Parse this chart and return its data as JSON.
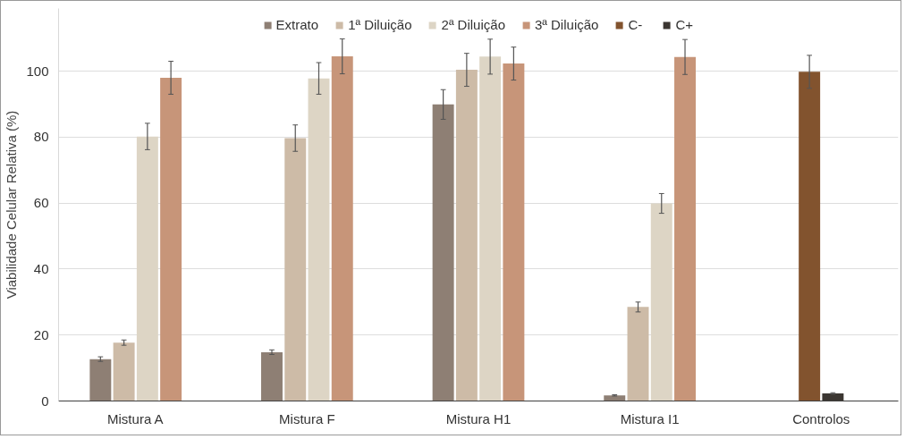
{
  "chart_data": {
    "type": "bar",
    "ylabel": "Viabilidade Celular Relativa (%)",
    "categories": [
      "Mistura A",
      "Mistura F",
      "Mistura H1",
      "Mistura I1",
      "Controlos"
    ],
    "series": [
      {
        "name": "Extrato",
        "color": "#8e7f74",
        "values": [
          12.7,
          14.8,
          89.9,
          1.7,
          null
        ],
        "errors": [
          0.7,
          0.7,
          4.5,
          0.2,
          null
        ]
      },
      {
        "name": "1ª Diluição",
        "color": "#cdbba7",
        "values": [
          17.7,
          79.7,
          100.4,
          28.5,
          null
        ],
        "errors": [
          0.8,
          4,
          5,
          1.5,
          null
        ]
      },
      {
        "name": "2ª Diluição",
        "color": "#ddd5c5",
        "values": [
          80.2,
          97.8,
          104.4,
          59.9,
          null
        ],
        "errors": [
          4,
          4.8,
          5.3,
          3,
          null
        ]
      },
      {
        "name": "3ª Diluição",
        "color": "#c79579",
        "values": [
          98.0,
          104.5,
          102.3,
          104.3,
          null
        ],
        "errors": [
          5,
          5.3,
          5,
          5.3,
          null
        ]
      },
      {
        "name": "C-",
        "color": "#82532e",
        "values": [
          null,
          null,
          null,
          null,
          99.8
        ],
        "errors": [
          null,
          null,
          null,
          null,
          5
        ]
      },
      {
        "name": "C+",
        "color": "#3b3631",
        "values": [
          null,
          null,
          null,
          null,
          2.3
        ],
        "errors": [
          null,
          null,
          null,
          null,
          0.2
        ]
      }
    ],
    "ylim": [
      0,
      119
    ],
    "yticks": [
      0,
      20,
      40,
      60,
      80,
      100
    ],
    "grid": "y",
    "legend": "top"
  }
}
